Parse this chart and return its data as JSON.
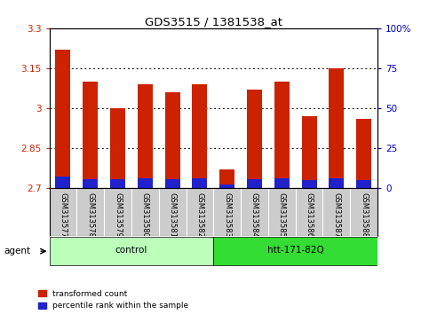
{
  "title": "GDS3515 / 1381538_at",
  "samples": [
    "GSM313577",
    "GSM313578",
    "GSM313579",
    "GSM313580",
    "GSM313581",
    "GSM313582",
    "GSM313583",
    "GSM313584",
    "GSM313585",
    "GSM313586",
    "GSM313587",
    "GSM313588"
  ],
  "red_values": [
    3.22,
    3.1,
    3.0,
    3.09,
    3.06,
    3.09,
    2.77,
    3.07,
    3.1,
    2.97,
    3.15,
    2.96
  ],
  "blue_values": [
    2.745,
    2.735,
    2.735,
    2.737,
    2.735,
    2.738,
    2.715,
    2.735,
    2.737,
    2.73,
    2.737,
    2.732
  ],
  "baseline": 2.7,
  "ymin": 2.7,
  "ymax": 3.3,
  "yticks_left": [
    2.7,
    2.85,
    3.0,
    3.15,
    3.3
  ],
  "ytick_labels_left": [
    "2.7",
    "2.85",
    "3",
    "3.15",
    "3.3"
  ],
  "yticks_right_vals": [
    0,
    25,
    50,
    75,
    100
  ],
  "ytick_labels_right": [
    "0",
    "25",
    "50",
    "75",
    "100%"
  ],
  "groups": [
    {
      "label": "control",
      "start": 0,
      "end": 6,
      "color": "#AAEEA A"
    },
    {
      "label": "htt-171-82Q",
      "start": 6,
      "end": 12,
      "color": "#33DD33"
    }
  ],
  "group_colors": [
    "#BBFFBB",
    "#33DD33"
  ],
  "agent_label": "agent",
  "bar_color_red": "#CC2200",
  "bar_color_blue": "#2222CC",
  "bar_width": 0.55,
  "bg_color": "#CCCCCC",
  "plot_bg_color": "white",
  "legend_items": [
    {
      "label": "transformed count",
      "color": "#CC2200"
    },
    {
      "label": "percentile rank within the sample",
      "color": "#2222CC"
    }
  ]
}
